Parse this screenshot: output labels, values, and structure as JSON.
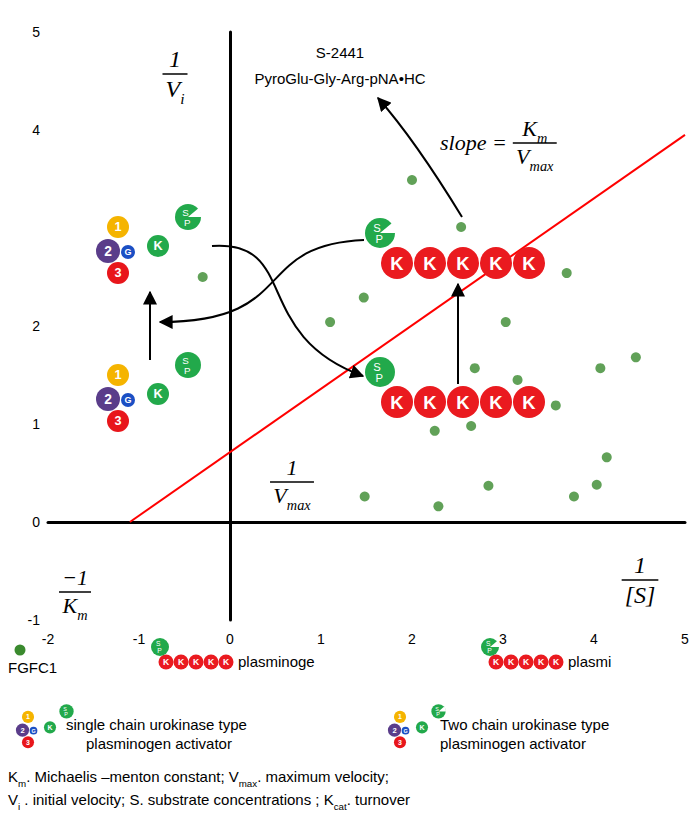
{
  "chart_data": {
    "type": "scatter",
    "series": [
      {
        "name": "FGFC1",
        "type": "scatter",
        "marker": "circle",
        "color": "#3a8a2e",
        "x": [
          -0.3,
          1.47,
          1.1,
          2.0,
          2.54,
          3.03,
          3.7,
          4.46,
          4.07,
          2.69,
          3.16,
          3.58,
          2.25,
          2.65,
          4.14,
          1.48,
          2.29,
          2.84,
          3.78,
          4.03
        ],
        "values": [
          2.5,
          2.29,
          2.04,
          3.49,
          3.01,
          2.04,
          2.54,
          1.68,
          1.57,
          1.57,
          1.45,
          1.19,
          0.93,
          0.98,
          0.66,
          0.26,
          0.16,
          0.37,
          0.26,
          0.38
        ]
      },
      {
        "type": "line",
        "color": "#ff0000",
        "line_style": "solid",
        "x": [
          -1.1,
          5
        ],
        "values": [
          0,
          3.95
        ]
      }
    ],
    "xlim": [
      -2,
      5
    ],
    "xticks": [
      -2,
      -1,
      0,
      1,
      2,
      3,
      4,
      5
    ],
    "ylim": [
      -1,
      5
    ],
    "yticks": [
      -1,
      0,
      1,
      2,
      4,
      5
    ],
    "grid": false,
    "legend": "bottom",
    "annotations": {
      "y_title": {
        "numerator": [
          {
            "text": "1"
          }
        ],
        "denominator": [
          {
            "text": "V"
          },
          {
            "text": "i",
            "sub": true
          }
        ]
      },
      "x_title": {
        "numerator": [
          {
            "text": "1"
          }
        ],
        "denominator": [
          {
            "text": "[S]"
          }
        ]
      },
      "intercept_y": {
        "numerator": [
          {
            "text": "1"
          }
        ],
        "denominator": [
          {
            "text": "V"
          },
          {
            "text": "max",
            "sub": true
          }
        ]
      },
      "intercept_x": {
        "numerator": [
          {
            "text": "−1"
          }
        ],
        "denominator": [
          {
            "text": "K"
          },
          {
            "text": "m",
            "sub": true
          }
        ]
      },
      "slope": {
        "prefix": "slope =",
        "numerator": [
          {
            "text": "K"
          },
          {
            "text": "m",
            "sub": true
          }
        ],
        "denominator": [
          {
            "text": "V"
          },
          {
            "text": "max",
            "sub": true
          }
        ]
      },
      "substrate": [
        "S-2441",
        "PyroGlu-Gly-Arg-pNA•HC"
      ]
    }
  },
  "diagram": {
    "domain_labels": {
      "domain1": "1",
      "domain2": "2",
      "growth_factor": "G",
      "domain3": "3",
      "kringle": "K",
      "serine_protease": [
        "S",
        "P"
      ]
    },
    "legend_items": {
      "plasminogen": [
        "plasminoge"
      ],
      "plasmin": [
        "plasmi"
      ],
      "scupa": [
        "single chain urokinase type",
        "plasminogen activator"
      ],
      "tcupa": [
        "Two chain urokinase type",
        "plasminogen activator"
      ]
    },
    "footnote": [
      [
        {
          "text": "K"
        },
        {
          "text": "m",
          "sub": true
        },
        {
          "text": ". Michaelis –menton constant; V"
        },
        {
          "text": "max",
          "sub": true
        },
        {
          "text": ". maximum velocity;"
        }
      ],
      [
        {
          "text": "V"
        },
        {
          "text": "i",
          "sub": true
        },
        {
          "text": " . initial velocity; S. substrate concentrations ; K"
        },
        {
          "text": "cat",
          "sub": true
        },
        {
          "text": ". turnover"
        }
      ]
    ]
  }
}
